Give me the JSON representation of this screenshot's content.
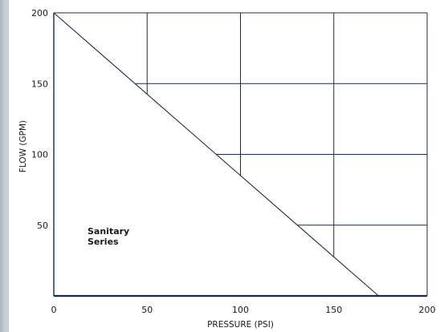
{
  "chart_data": {
    "type": "line",
    "title": "",
    "xlabel": "PRESSURE (PSI)",
    "ylabel": "FLOW (GPM)",
    "xlim": [
      0,
      200
    ],
    "ylim": [
      0,
      200
    ],
    "x_ticks": [
      0,
      50,
      100,
      150,
      200
    ],
    "y_ticks": [
      50,
      100,
      150,
      200
    ],
    "grid": true,
    "series": [
      {
        "x": [
          0,
          174
        ],
        "y": [
          200,
          0
        ],
        "color": "#1c2a4a"
      }
    ],
    "annotation": [
      "Sanitary",
      "Series"
    ]
  }
}
